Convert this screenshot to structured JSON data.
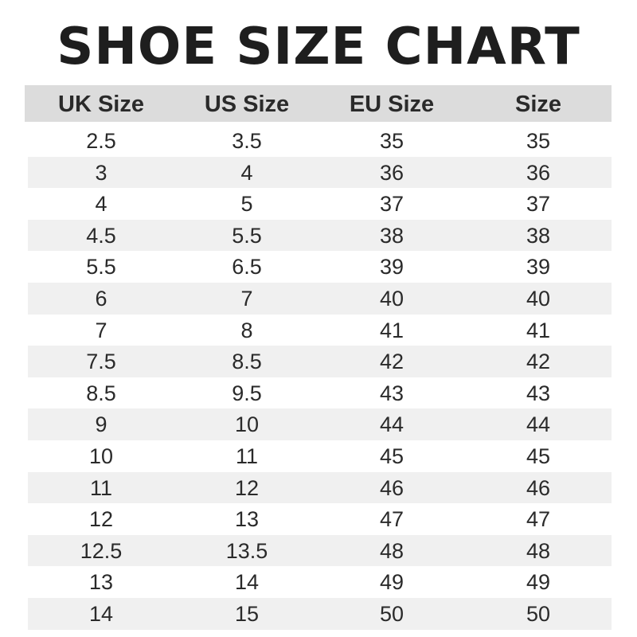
{
  "title": "SHOE SIZE CHART",
  "colors": {
    "header_bg": "#dcdcdc",
    "alt_row_bg": "#f0f0f0"
  },
  "headers": [
    "UK Size",
    "US Size",
    "EU Size",
    "Size"
  ],
  "rows": [
    [
      "2.5",
      "3.5",
      "35",
      "35"
    ],
    [
      "3",
      "4",
      "36",
      "36"
    ],
    [
      "4",
      "5",
      "37",
      "37"
    ],
    [
      "4.5",
      "5.5",
      "38",
      "38"
    ],
    [
      "5.5",
      "6.5",
      "39",
      "39"
    ],
    [
      "6",
      "7",
      "40",
      "40"
    ],
    [
      "7",
      "8",
      "41",
      "41"
    ],
    [
      "7.5",
      "8.5",
      "42",
      "42"
    ],
    [
      "8.5",
      "9.5",
      "43",
      "43"
    ],
    [
      "9",
      "10",
      "44",
      "44"
    ],
    [
      "10",
      "11",
      "45",
      "45"
    ],
    [
      "11",
      "12",
      "46",
      "46"
    ],
    [
      "12",
      "13",
      "47",
      "47"
    ],
    [
      "12.5",
      "13.5",
      "48",
      "48"
    ],
    [
      "13",
      "14",
      "49",
      "49"
    ],
    [
      "14",
      "15",
      "50",
      "50"
    ]
  ]
}
